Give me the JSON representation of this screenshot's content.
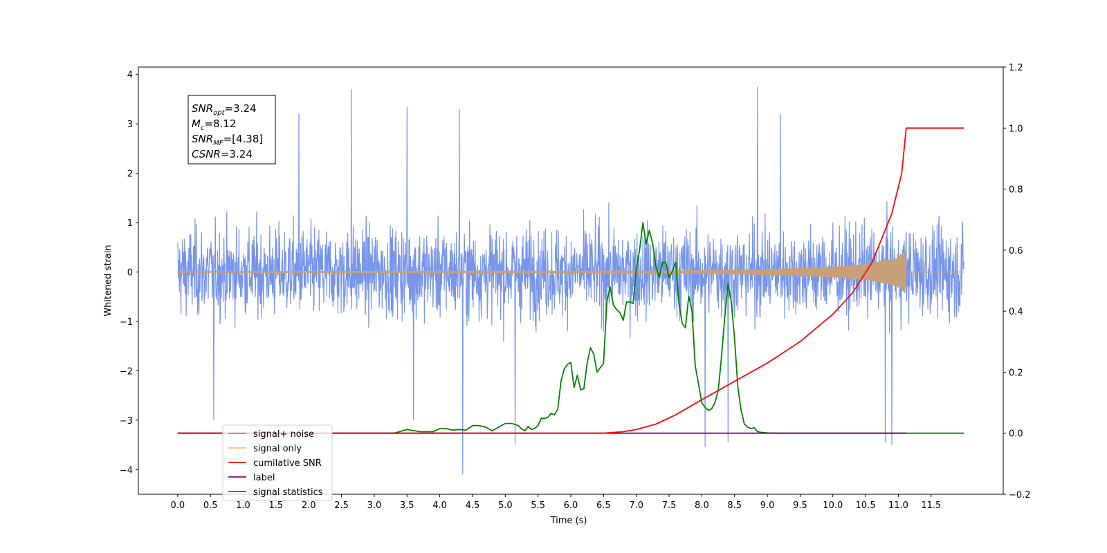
{
  "chart_data": {
    "type": "line",
    "xlabel": "Time (s)",
    "ylabel": "Whitened strain",
    "xlim": [
      -0.6,
      12.6
    ],
    "ylim_left": [
      -4.5,
      4.15
    ],
    "ylim_right": [
      -0.2,
      1.2
    ],
    "x_ticks": [
      "0.0",
      "0.5",
      "1.0",
      "1.5",
      "2.0",
      "2.5",
      "3.0",
      "3.5",
      "4.0",
      "4.5",
      "5.0",
      "5.5",
      "6.0",
      "6.5",
      "7.0",
      "7.5",
      "8.0",
      "8.5",
      "9.0",
      "9.5",
      "10.0",
      "10.5",
      "11.0",
      "11.5"
    ],
    "y_ticks_left": [
      "−4",
      "−3",
      "−2",
      "−1",
      "0",
      "1",
      "2",
      "3",
      "4"
    ],
    "y_ticks_right": [
      "−0.2",
      "0.0",
      "0.2",
      "0.4",
      "0.6",
      "0.8",
      "1.0",
      "1.2"
    ],
    "annotation": {
      "lines": [
        {
          "base": "SNR",
          "sub": "opt",
          "value": "=3.24"
        },
        {
          "base": "M",
          "sub": "c",
          "value": "=8.12"
        },
        {
          "base": "SNR",
          "sub": "MF",
          "value": "=[4.38]"
        },
        {
          "base": "CSNR",
          "sub": "",
          "value": "=3.24"
        }
      ]
    },
    "legend": {
      "location": "lower-left",
      "entries": [
        {
          "label": "signal+ noise",
          "color": "#6f8ee8"
        },
        {
          "label": "signal only",
          "color": "#ffc060"
        },
        {
          "label": "cumilative SNR",
          "color": "#ff0000"
        },
        {
          "label": "label",
          "color": "#800080"
        },
        {
          "label": "signal statistics",
          "color": "#008000"
        }
      ]
    },
    "series": [
      {
        "name": "signal+ noise",
        "axis": "left",
        "color": "#6f8ee8",
        "x_range": [
          0.0,
          12.0
        ],
        "envelope": "noise ±1.6 typical, peaks to ~±3.7",
        "spikes": [
          {
            "x": 2.65,
            "y": 3.7
          },
          {
            "x": 8.85,
            "y": 3.75
          },
          {
            "x": 4.35,
            "y": -4.1
          },
          {
            "x": 8.05,
            "y": -3.55
          },
          {
            "x": 8.4,
            "y": -3.45
          },
          {
            "x": 10.8,
            "y": -3.45
          },
          {
            "x": 10.9,
            "y": -3.5
          },
          {
            "x": 3.5,
            "y": 3.35
          },
          {
            "x": 4.3,
            "y": 3.3
          },
          {
            "x": 1.85,
            "y": 3.2
          },
          {
            "x": 0.55,
            "y": -3.0
          },
          {
            "x": 3.6,
            "y": -3.0
          },
          {
            "x": 5.15,
            "y": -3.5
          },
          {
            "x": 9.2,
            "y": 3.2
          }
        ]
      },
      {
        "name": "signal only",
        "axis": "left",
        "color": "#c8a078",
        "x": [
          0.0,
          7.5,
          8.5,
          9.5,
          10.0,
          10.5,
          11.0,
          11.1,
          11.12
        ],
        "amplitude": [
          0.01,
          0.02,
          0.04,
          0.07,
          0.1,
          0.15,
          0.28,
          0.42,
          0.0
        ]
      },
      {
        "name": "cumilative SNR",
        "axis": "right",
        "color": "#ff0000",
        "x": [
          0.0,
          6.5,
          6.8,
          7.0,
          7.3,
          7.6,
          8.0,
          8.5,
          9.0,
          9.5,
          10.0,
          10.3,
          10.6,
          10.9,
          11.05,
          11.12,
          12.0
        ],
        "y": [
          0.0,
          0.0,
          0.005,
          0.012,
          0.03,
          0.06,
          0.11,
          0.17,
          0.23,
          0.3,
          0.39,
          0.46,
          0.56,
          0.72,
          0.85,
          1.0,
          1.0
        ]
      },
      {
        "name": "label",
        "axis": "right",
        "color": "#800080",
        "x": [
          0.0,
          11.12
        ],
        "y": [
          0.0,
          0.0
        ]
      },
      {
        "name": "signal statistics",
        "axis": "right",
        "color": "#008000",
        "x": [
          0.0,
          3.0,
          3.3,
          3.5,
          3.7,
          3.9,
          4.0,
          4.1,
          4.2,
          4.3,
          4.4,
          4.5,
          4.6,
          4.7,
          4.8,
          4.9,
          5.0,
          5.1,
          5.2,
          5.25,
          5.3,
          5.35,
          5.4,
          5.45,
          5.5,
          5.55,
          5.6,
          5.65,
          5.7,
          5.75,
          5.8,
          5.85,
          5.9,
          5.95,
          6.0,
          6.05,
          6.1,
          6.15,
          6.2,
          6.25,
          6.3,
          6.35,
          6.4,
          6.45,
          6.5,
          6.55,
          6.6,
          6.65,
          6.7,
          6.75,
          6.8,
          6.85,
          6.9,
          6.95,
          7.0,
          7.05,
          7.1,
          7.15,
          7.2,
          7.25,
          7.3,
          7.35,
          7.4,
          7.45,
          7.5,
          7.55,
          7.6,
          7.65,
          7.7,
          7.75,
          7.8,
          7.85,
          7.9,
          7.95,
          8.0,
          8.05,
          8.1,
          8.15,
          8.2,
          8.25,
          8.3,
          8.35,
          8.4,
          8.45,
          8.5,
          8.55,
          8.6,
          8.65,
          8.7,
          8.75,
          8.8,
          8.85,
          8.9,
          8.95,
          9.0,
          9.1,
          9.2,
          9.4,
          9.6,
          10.0,
          11.0,
          12.0
        ],
        "y": [
          0.0,
          0.0,
          0.0,
          0.012,
          0.005,
          0.005,
          0.015,
          0.015,
          0.01,
          0.012,
          0.01,
          0.025,
          0.025,
          0.02,
          0.008,
          0.02,
          0.032,
          0.032,
          0.025,
          0.014,
          0.008,
          0.022,
          0.012,
          0.016,
          0.025,
          0.05,
          0.048,
          0.052,
          0.065,
          0.06,
          0.078,
          0.17,
          0.21,
          0.226,
          0.232,
          0.15,
          0.19,
          0.142,
          0.146,
          0.23,
          0.28,
          0.26,
          0.2,
          0.215,
          0.228,
          0.43,
          0.48,
          0.42,
          0.405,
          0.395,
          0.37,
          0.43,
          0.43,
          0.425,
          0.54,
          0.6,
          0.69,
          0.62,
          0.665,
          0.62,
          0.545,
          0.51,
          0.56,
          0.56,
          0.51,
          0.53,
          0.56,
          0.425,
          0.36,
          0.345,
          0.45,
          0.4,
          0.22,
          0.16,
          0.1,
          0.085,
          0.075,
          0.08,
          0.1,
          0.14,
          0.25,
          0.38,
          0.49,
          0.43,
          0.31,
          0.15,
          0.075,
          0.03,
          0.02,
          0.015,
          0.018,
          0.005,
          0.003,
          0.002,
          0.001,
          0.0,
          0.0,
          0.0,
          0.0,
          0.0,
          0.0,
          0.0
        ]
      }
    ]
  }
}
